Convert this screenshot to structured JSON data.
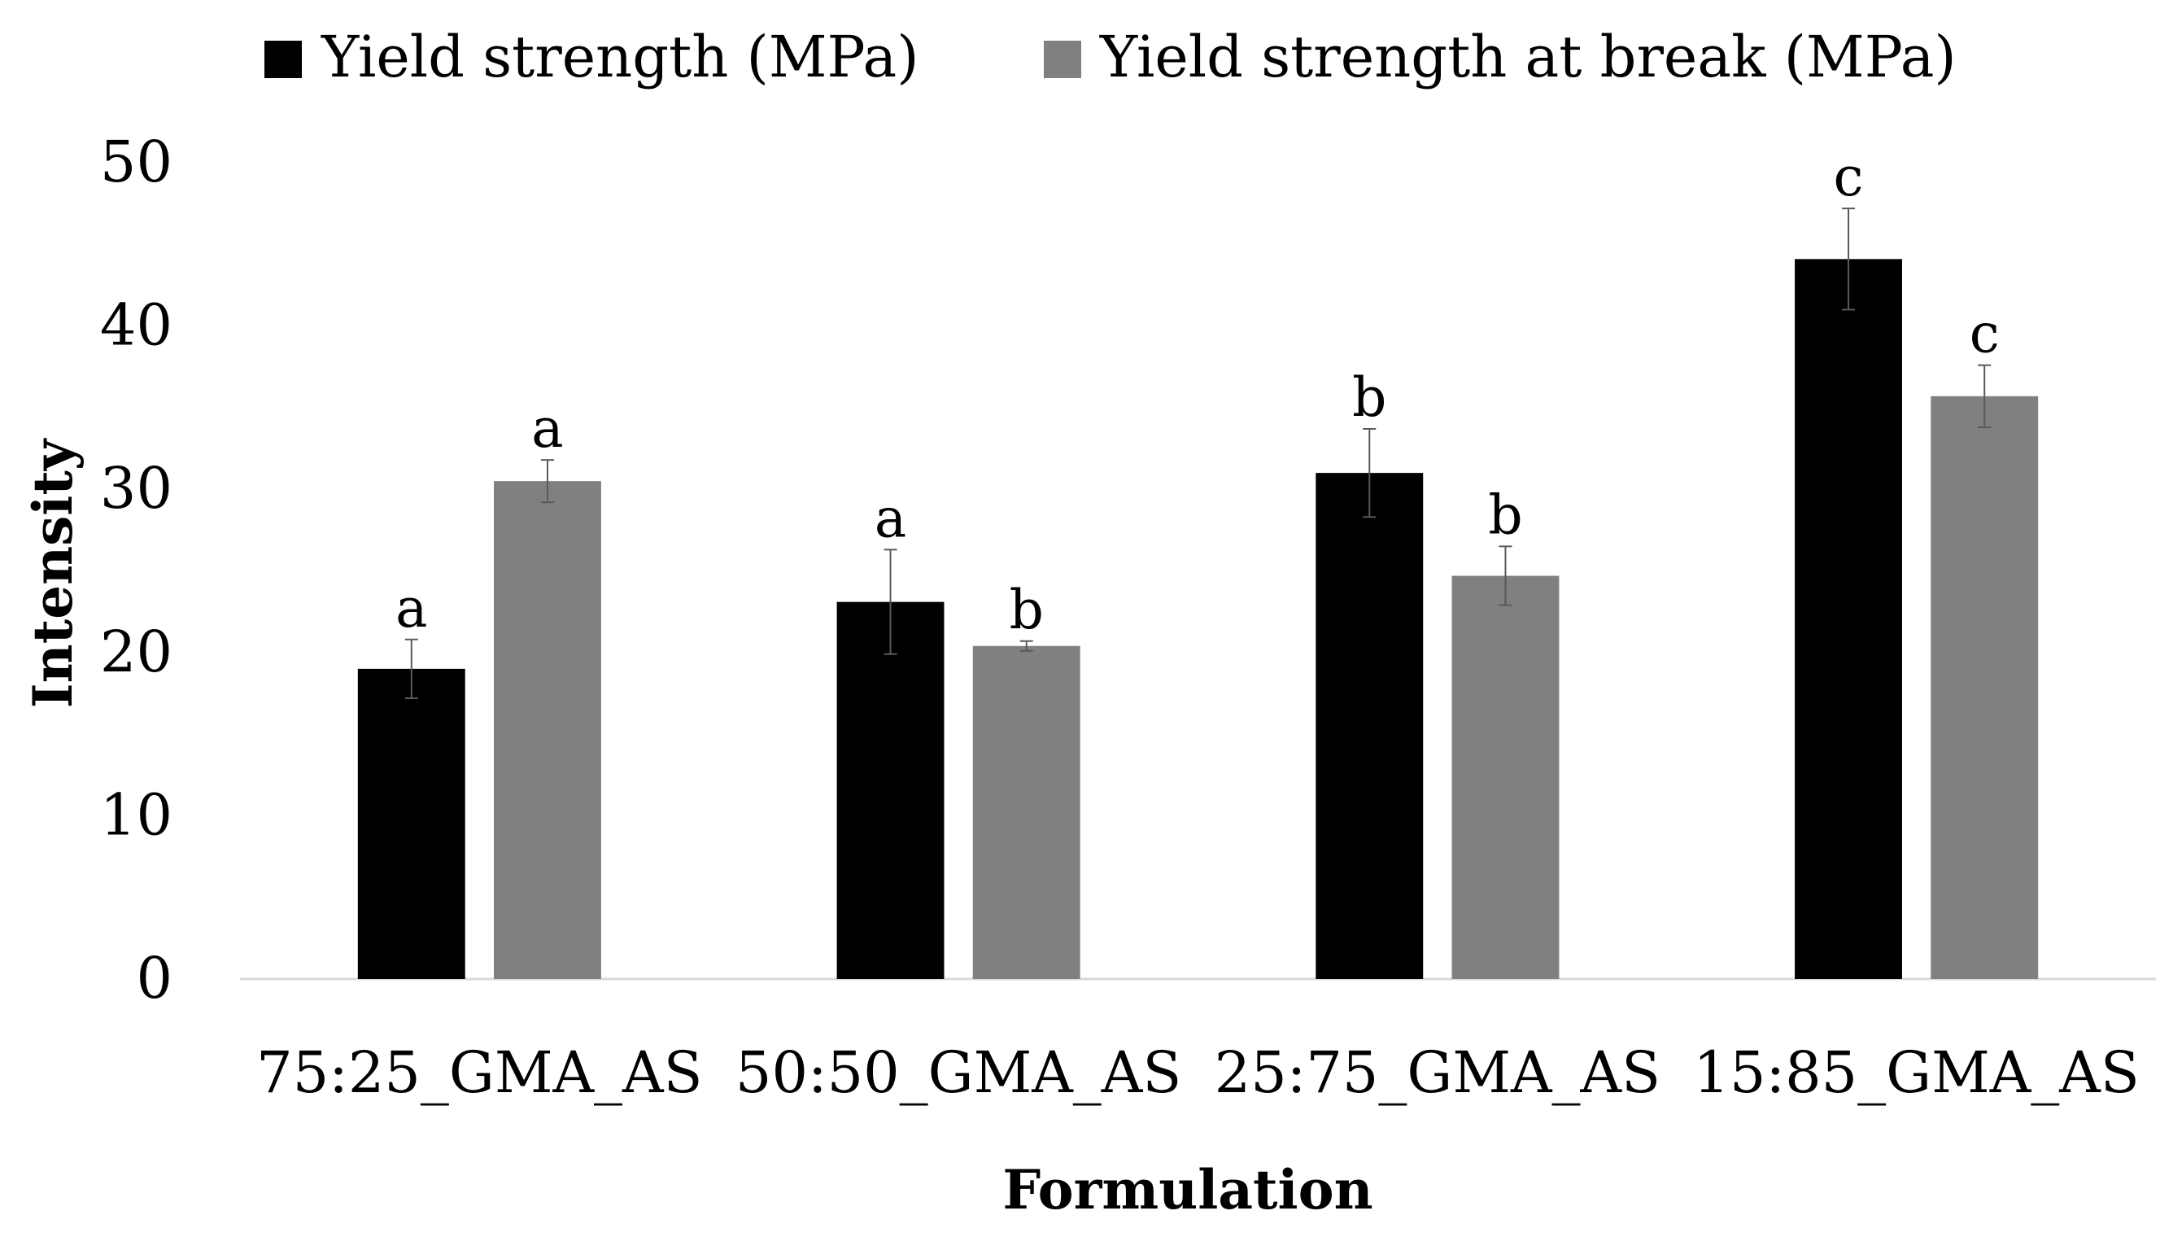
{
  "chart_data": {
    "type": "bar",
    "title": "",
    "xlabel": "Formulation",
    "ylabel": "Intensity",
    "ylim": [
      0,
      50
    ],
    "yticks": [
      0,
      10,
      20,
      30,
      40,
      50
    ],
    "yticks_text": [
      "0",
      "10",
      "20",
      "30",
      "40",
      "50"
    ],
    "categories": [
      "75:25_GMA_AS",
      "50:50_GMA_AS",
      "25:75_GMA_AS",
      "15:85_GMA_AS"
    ],
    "legend_position": "top",
    "series": [
      {
        "name": "Yield strength (MPa)",
        "color": "#000000",
        "values": [
          19.0,
          23.1,
          31.0,
          44.1
        ],
        "errors": [
          1.8,
          3.2,
          2.7,
          3.1
        ],
        "letters": [
          "a",
          "a",
          "b",
          "c"
        ]
      },
      {
        "name": "Yield strength at break (MPa)",
        "color": "#808080",
        "values": [
          30.5,
          20.4,
          24.7,
          35.7
        ],
        "errors": [
          1.3,
          0.3,
          1.8,
          1.9
        ],
        "letters": [
          "a",
          "b",
          "b",
          "c"
        ]
      }
    ]
  }
}
